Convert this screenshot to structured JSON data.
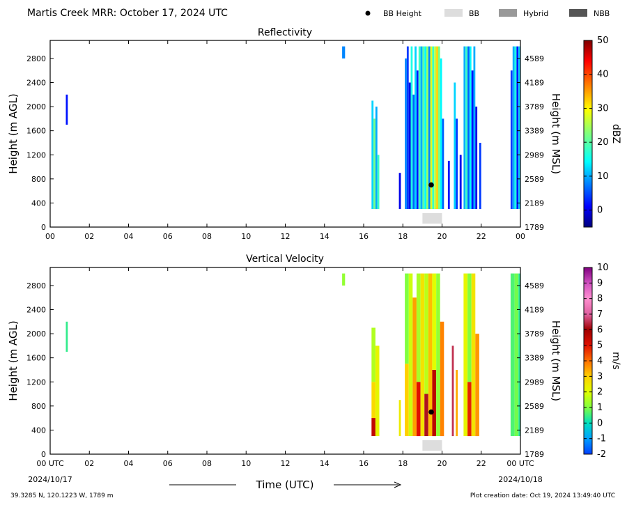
{
  "header": {
    "title": "Martis Creek MRR:  October 17, 2024 UTC",
    "legend": [
      {
        "label": "BB Height",
        "kind": "dot",
        "color": "#000000"
      },
      {
        "label": "BB",
        "kind": "box",
        "color": "#dddddd"
      },
      {
        "label": "Hybrid",
        "kind": "box",
        "color": "#999999"
      },
      {
        "label": "NBB",
        "kind": "box",
        "color": "#555555"
      }
    ]
  },
  "footer": {
    "location": "39.3285 N, 120.1223 W, 1789 m",
    "creation": "Plot creation date: Oct 19, 2024 13:49:40 UTC",
    "time_label": "Time (UTC)"
  },
  "chart_data": [
    {
      "type": "heatmap",
      "title": "Reflectivity",
      "ylabel": "Height (m AGL)",
      "y2label": "Height (m MSL)",
      "cbar_label": "dBZ",
      "ylim": [
        0,
        3100
      ],
      "xlim": [
        0,
        24
      ],
      "yticks": [
        0,
        400,
        800,
        1200,
        1600,
        2000,
        2400,
        2800
      ],
      "y2ticks": [
        "1789",
        "2189",
        "2589",
        "2989",
        "3389",
        "3789",
        "4189",
        "4589"
      ],
      "xticks": [
        "00",
        "02",
        "04",
        "06",
        "08",
        "10",
        "12",
        "14",
        "16",
        "18",
        "20",
        "22",
        "00"
      ],
      "cbar_range": [
        -5,
        50
      ],
      "cbar_ticks": [
        "0",
        "10",
        "20",
        "30",
        "40",
        "50"
      ],
      "cmap": "jet",
      "bb_height": {
        "time": 19.45,
        "height": 700
      },
      "bb_period": {
        "start": 19.0,
        "end": 20.0,
        "type": "BB"
      },
      "cells": [
        {
          "t0": 0.8,
          "t1": 0.9,
          "h0": 1700,
          "h1": 2200,
          "v": 2
        },
        {
          "t0": 14.9,
          "t1": 15.05,
          "h0": 2800,
          "h1": 3000,
          "v": 8
        },
        {
          "t0": 16.4,
          "t1": 16.5,
          "h0": 300,
          "h1": 2100,
          "v": 12
        },
        {
          "t0": 16.5,
          "t1": 16.6,
          "h0": 300,
          "h1": 1800,
          "v": 22
        },
        {
          "t0": 16.6,
          "t1": 16.7,
          "h0": 300,
          "h1": 2000,
          "v": 10
        },
        {
          "t0": 16.7,
          "t1": 16.8,
          "h0": 300,
          "h1": 1200,
          "v": 18
        },
        {
          "t0": 17.8,
          "t1": 17.9,
          "h0": 300,
          "h1": 900,
          "v": 0
        },
        {
          "t0": 18.1,
          "t1": 18.2,
          "h0": 300,
          "h1": 2800,
          "v": 8
        },
        {
          "t0": 18.2,
          "t1": 18.3,
          "h0": 300,
          "h1": 3000,
          "v": 4
        },
        {
          "t0": 18.3,
          "t1": 18.4,
          "h0": 300,
          "h1": 2400,
          "v": 0
        },
        {
          "t0": 18.4,
          "t1": 18.5,
          "h0": 300,
          "h1": 3000,
          "v": 16
        },
        {
          "t0": 18.5,
          "t1": 18.6,
          "h0": 300,
          "h1": 2200,
          "v": 6
        },
        {
          "t0": 18.6,
          "t1": 18.7,
          "h0": 300,
          "h1": 3000,
          "v": 12
        },
        {
          "t0": 18.7,
          "t1": 18.8,
          "h0": 300,
          "h1": 2600,
          "v": 2
        },
        {
          "t0": 18.8,
          "t1": 18.9,
          "h0": 300,
          "h1": 3000,
          "v": 18
        },
        {
          "t0": 18.9,
          "t1": 19.0,
          "h0": 300,
          "h1": 3000,
          "v": 10
        },
        {
          "t0": 19.0,
          "t1": 19.1,
          "h0": 300,
          "h1": 3000,
          "v": 20
        },
        {
          "t0": 19.1,
          "t1": 19.2,
          "h0": 300,
          "h1": 3000,
          "v": 14
        },
        {
          "t0": 19.2,
          "t1": 19.3,
          "h0": 300,
          "h1": 3000,
          "v": 24
        },
        {
          "t0": 19.3,
          "t1": 19.4,
          "h0": 300,
          "h1": 3000,
          "v": 8
        },
        {
          "t0": 19.4,
          "t1": 19.5,
          "h0": 300,
          "h1": 3000,
          "v": 28
        },
        {
          "t0": 19.5,
          "t1": 19.6,
          "h0": 300,
          "h1": 3000,
          "v": 18
        },
        {
          "t0": 19.6,
          "t1": 19.7,
          "h0": 300,
          "h1": 3000,
          "v": 26
        },
        {
          "t0": 19.7,
          "t1": 19.8,
          "h0": 300,
          "h1": 3000,
          "v": 32
        },
        {
          "t0": 19.8,
          "t1": 19.9,
          "h0": 300,
          "h1": 3000,
          "v": 22
        },
        {
          "t0": 19.9,
          "t1": 20.0,
          "h0": 300,
          "h1": 2800,
          "v": 14
        },
        {
          "t0": 20.0,
          "t1": 20.1,
          "h0": 300,
          "h1": 1800,
          "v": 6
        },
        {
          "t0": 20.3,
          "t1": 20.4,
          "h0": 300,
          "h1": 1100,
          "v": 2
        },
        {
          "t0": 20.6,
          "t1": 20.7,
          "h0": 300,
          "h1": 2400,
          "v": 12
        },
        {
          "t0": 20.7,
          "t1": 20.8,
          "h0": 300,
          "h1": 1800,
          "v": 4
        },
        {
          "t0": 20.9,
          "t1": 21.0,
          "h0": 300,
          "h1": 1200,
          "v": 0
        },
        {
          "t0": 21.1,
          "t1": 21.2,
          "h0": 300,
          "h1": 3000,
          "v": 10
        },
        {
          "t0": 21.2,
          "t1": 21.3,
          "h0": 300,
          "h1": 3000,
          "v": 18
        },
        {
          "t0": 21.3,
          "t1": 21.4,
          "h0": 300,
          "h1": 3000,
          "v": 6
        },
        {
          "t0": 21.4,
          "t1": 21.5,
          "h0": 300,
          "h1": 3000,
          "v": 14
        },
        {
          "t0": 21.5,
          "t1": 21.6,
          "h0": 300,
          "h1": 2600,
          "v": 2
        },
        {
          "t0": 21.6,
          "t1": 21.7,
          "h0": 300,
          "h1": 3000,
          "v": 10
        },
        {
          "t0": 21.7,
          "t1": 21.8,
          "h0": 300,
          "h1": 2000,
          "v": 0
        },
        {
          "t0": 21.9,
          "t1": 22.0,
          "h0": 300,
          "h1": 1400,
          "v": 4
        },
        {
          "t0": 23.5,
          "t1": 23.6,
          "h0": 300,
          "h1": 2600,
          "v": 4
        },
        {
          "t0": 23.6,
          "t1": 23.7,
          "h0": 300,
          "h1": 3000,
          "v": 10
        },
        {
          "t0": 23.7,
          "t1": 23.8,
          "h0": 300,
          "h1": 3000,
          "v": 16
        },
        {
          "t0": 23.8,
          "t1": 23.9,
          "h0": 300,
          "h1": 3000,
          "v": 2
        },
        {
          "t0": 23.9,
          "t1": 24.0,
          "h0": 300,
          "h1": 3000,
          "v": 12
        }
      ]
    },
    {
      "type": "heatmap",
      "title": "Vertical Velocity",
      "ylabel": "Height (m AGL)",
      "y2label": "Height (m MSL)",
      "cbar_label": "m/s",
      "ylim": [
        0,
        3100
      ],
      "xlim": [
        0,
        24
      ],
      "yticks": [
        0,
        400,
        800,
        1200,
        1600,
        2000,
        2400,
        2800
      ],
      "y2ticks": [
        "1789",
        "2189",
        "2589",
        "2989",
        "3389",
        "3789",
        "4189",
        "4589"
      ],
      "xticks": [
        "00 UTC",
        "02",
        "04",
        "06",
        "08",
        "10",
        "12",
        "14",
        "16",
        "18",
        "20",
        "22",
        "00 UTC"
      ],
      "xdates": [
        "2024/10/17",
        "2024/10/18"
      ],
      "cbar_range": [
        -2,
        10
      ],
      "cbar_ticks": [
        "-2",
        "-1",
        "0",
        "1",
        "2",
        "3",
        "4",
        "5",
        "6",
        "7",
        "8",
        "9",
        "10"
      ],
      "cmap": "velocity",
      "bb_height": {
        "time": 19.45,
        "height": 700
      },
      "bb_period": {
        "start": 19.0,
        "end": 20.0,
        "type": "BB"
      },
      "cells": [
        {
          "t0": 0.8,
          "t1": 0.9,
          "h0": 1700,
          "h1": 2200,
          "v": 0.4
        },
        {
          "t0": 14.9,
          "t1": 15.05,
          "h0": 2800,
          "h1": 3000,
          "v": 1.2
        },
        {
          "t0": 16.4,
          "t1": 16.6,
          "h0": 1200,
          "h1": 2100,
          "v": 1.5
        },
        {
          "t0": 16.4,
          "t1": 16.6,
          "h0": 600,
          "h1": 1200,
          "v": 2.8
        },
        {
          "t0": 16.4,
          "t1": 16.6,
          "h0": 300,
          "h1": 600,
          "v": 5.5
        },
        {
          "t0": 16.6,
          "t1": 16.8,
          "h0": 300,
          "h1": 1800,
          "v": 2.2
        },
        {
          "t0": 17.8,
          "t1": 17.9,
          "h0": 300,
          "h1": 900,
          "v": 2.4
        },
        {
          "t0": 18.1,
          "t1": 18.3,
          "h0": 1500,
          "h1": 3000,
          "v": 1.0
        },
        {
          "t0": 18.1,
          "t1": 18.3,
          "h0": 300,
          "h1": 1500,
          "v": 3.0
        },
        {
          "t0": 18.3,
          "t1": 18.5,
          "h0": 300,
          "h1": 3000,
          "v": 1.8
        },
        {
          "t0": 18.5,
          "t1": 18.7,
          "h0": 300,
          "h1": 2600,
          "v": 3.5
        },
        {
          "t0": 18.7,
          "t1": 18.9,
          "h0": 1200,
          "h1": 3000,
          "v": 1.4
        },
        {
          "t0": 18.7,
          "t1": 18.9,
          "h0": 300,
          "h1": 1200,
          "v": 5.0
        },
        {
          "t0": 18.9,
          "t1": 19.1,
          "h0": 300,
          "h1": 3000,
          "v": 2.6
        },
        {
          "t0": 19.1,
          "t1": 19.3,
          "h0": 300,
          "h1": 1000,
          "v": 6.2
        },
        {
          "t0": 19.1,
          "t1": 19.3,
          "h0": 1000,
          "h1": 3000,
          "v": 1.6
        },
        {
          "t0": 19.3,
          "t1": 19.5,
          "h0": 300,
          "h1": 3000,
          "v": 3.2
        },
        {
          "t0": 19.5,
          "t1": 19.7,
          "h0": 300,
          "h1": 1400,
          "v": 5.6
        },
        {
          "t0": 19.5,
          "t1": 19.7,
          "h0": 1400,
          "h1": 3000,
          "v": 2.0
        },
        {
          "t0": 19.7,
          "t1": 19.9,
          "h0": 300,
          "h1": 3000,
          "v": 1.2
        },
        {
          "t0": 19.9,
          "t1": 20.1,
          "h0": 300,
          "h1": 2200,
          "v": 3.8
        },
        {
          "t0": 20.5,
          "t1": 20.6,
          "h0": 300,
          "h1": 1800,
          "v": 6.5
        },
        {
          "t0": 20.7,
          "t1": 20.8,
          "h0": 300,
          "h1": 1400,
          "v": 3.4
        },
        {
          "t0": 21.1,
          "t1": 21.3,
          "h0": 300,
          "h1": 3000,
          "v": 2.2
        },
        {
          "t0": 21.3,
          "t1": 21.5,
          "h0": 300,
          "h1": 1200,
          "v": 4.8
        },
        {
          "t0": 21.3,
          "t1": 21.5,
          "h0": 1200,
          "h1": 3000,
          "v": 1.0
        },
        {
          "t0": 21.5,
          "t1": 21.7,
          "h0": 300,
          "h1": 3000,
          "v": 2.6
        },
        {
          "t0": 21.7,
          "t1": 21.9,
          "h0": 300,
          "h1": 2000,
          "v": 3.6
        },
        {
          "t0": 23.5,
          "t1": 23.7,
          "h0": 300,
          "h1": 3000,
          "v": 0.6
        },
        {
          "t0": 23.7,
          "t1": 23.9,
          "h0": 300,
          "h1": 3000,
          "v": 0.9
        },
        {
          "t0": 23.9,
          "t1": 24.0,
          "h0": 300,
          "h1": 3000,
          "v": 0.3
        }
      ]
    }
  ]
}
